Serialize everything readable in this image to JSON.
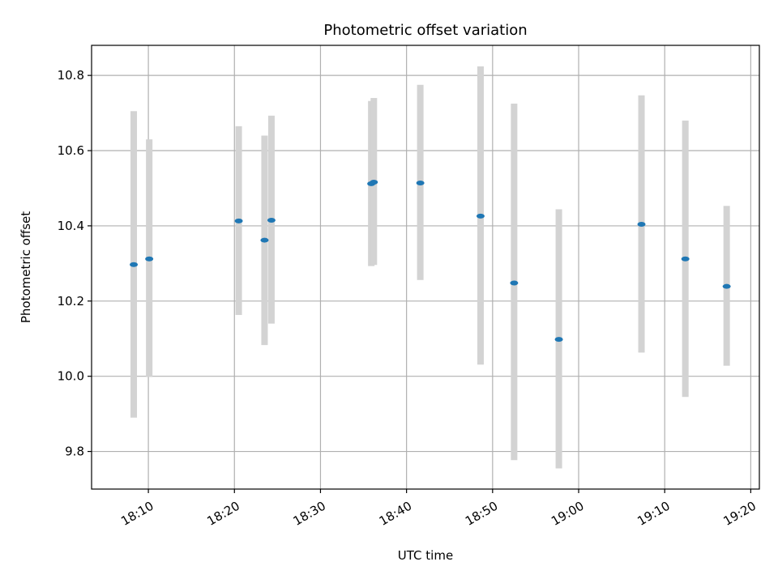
{
  "chart_data": {
    "type": "scatter",
    "title": "Photometric offset variation",
    "xlabel": "UTC time",
    "ylabel": "Photometric offset",
    "xlim": [
      "18:03.4",
      "19:21.0"
    ],
    "ylim": [
      9.7,
      10.88
    ],
    "x_ticks": [
      "18:10",
      "18:20",
      "18:30",
      "18:40",
      "18:50",
      "19:00",
      "19:10",
      "19:20"
    ],
    "y_ticks": [
      9.8,
      10.0,
      10.2,
      10.4,
      10.6,
      10.8
    ],
    "grid": true,
    "colors": {
      "point": "#1f77b4",
      "errorbar": "#d3d3d3",
      "grid": "#b0b0b0"
    },
    "points": [
      {
        "time": "18:08.3",
        "y": 10.297,
        "ylow": 9.89,
        "yhigh": 10.705
      },
      {
        "time": "18:10.1",
        "y": 10.312,
        "ylow": 9.998,
        "yhigh": 10.63
      },
      {
        "time": "18:20.5",
        "y": 10.413,
        "ylow": 10.163,
        "yhigh": 10.665
      },
      {
        "time": "18:23.5",
        "y": 10.362,
        "ylow": 10.083,
        "yhigh": 10.64
      },
      {
        "time": "18:24.3",
        "y": 10.415,
        "ylow": 10.14,
        "yhigh": 10.693
      },
      {
        "time": "18:35.9",
        "y": 10.512,
        "ylow": 10.293,
        "yhigh": 10.732
      },
      {
        "time": "18:36.2",
        "y": 10.516,
        "ylow": 10.296,
        "yhigh": 10.74
      },
      {
        "time": "18:41.6",
        "y": 10.514,
        "ylow": 10.256,
        "yhigh": 10.775
      },
      {
        "time": "18:48.6",
        "y": 10.426,
        "ylow": 10.031,
        "yhigh": 10.824
      },
      {
        "time": "18:52.5",
        "y": 10.248,
        "ylow": 9.777,
        "yhigh": 10.725
      },
      {
        "time": "18:57.7",
        "y": 10.098,
        "ylow": 9.755,
        "yhigh": 10.444
      },
      {
        "time": "19:07.3",
        "y": 10.404,
        "ylow": 10.063,
        "yhigh": 10.747
      },
      {
        "time": "19:12.4",
        "y": 10.312,
        "ylow": 9.945,
        "yhigh": 10.68
      },
      {
        "time": "19:17.2",
        "y": 10.239,
        "ylow": 10.028,
        "yhigh": 10.453
      }
    ]
  }
}
